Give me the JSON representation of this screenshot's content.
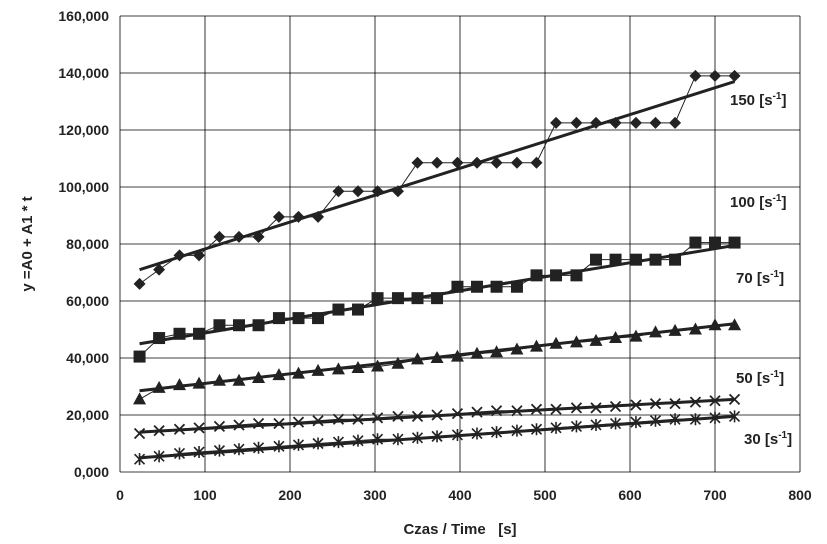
{
  "chart_data": {
    "type": "scatter",
    "xlabel": "Czas / Time   [s]",
    "ylabel": "y =A0 + A1 * t",
    "xlim": [
      0,
      800
    ],
    "ylim": [
      0,
      160000
    ],
    "x_ticks": [
      "0",
      "100",
      "200",
      "300",
      "400",
      "500",
      "600",
      "700",
      "800"
    ],
    "y_ticks": [
      "0,000",
      "20,000",
      "40,000",
      "60,000",
      "80,000",
      "100,000",
      "120,000",
      "140,000",
      "160,000"
    ],
    "grid": true,
    "series": [
      {
        "label_base": "150 [s",
        "label_sup": "-1",
        "label_end": "]",
        "marker": "diamond",
        "x": [
          23,
          46,
          70,
          93,
          117,
          140,
          163,
          187,
          210,
          233,
          257,
          280,
          303,
          327,
          350,
          373,
          397,
          420,
          443,
          467,
          490,
          513,
          537,
          560,
          583,
          607,
          630,
          653,
          677,
          700,
          723
        ],
        "values": [
          66000,
          71000,
          76000,
          76000,
          82500,
          82500,
          82500,
          89500,
          89500,
          89500,
          98500,
          98500,
          98500,
          98500,
          108500,
          108500,
          108500,
          108500,
          108500,
          108500,
          108500,
          122500,
          122500,
          122500,
          122500,
          122500,
          122500,
          122500,
          139000,
          139000,
          139000
        ],
        "fit": {
          "x": [
            23,
            723
          ],
          "y": [
            71000,
            137000
          ]
        }
      },
      {
        "label_base": "100 [s",
        "label_sup": "-1",
        "label_end": "]",
        "marker": "square",
        "x": [
          23,
          46,
          70,
          93,
          117,
          140,
          163,
          187,
          210,
          233,
          257,
          280,
          303,
          327,
          350,
          373,
          397,
          420,
          443,
          467,
          490,
          513,
          537,
          560,
          583,
          607,
          630,
          653,
          677,
          700,
          723
        ],
        "values": [
          40500,
          47000,
          48500,
          48500,
          51500,
          51500,
          51500,
          54000,
          54000,
          54000,
          57000,
          57000,
          61000,
          61000,
          61000,
          61000,
          65000,
          65000,
          65000,
          65000,
          69000,
          69000,
          69000,
          74500,
          74500,
          74500,
          74500,
          74500,
          80500,
          80500,
          80500
        ],
        "fit": {
          "x": [
            23,
            723
          ],
          "y": [
            45000,
            79500
          ]
        }
      },
      {
        "label_base": "70 [s",
        "label_sup": "-1",
        "label_end": "]",
        "marker": "triangle",
        "x": [
          23,
          46,
          70,
          93,
          117,
          140,
          163,
          187,
          210,
          233,
          257,
          280,
          303,
          327,
          350,
          373,
          397,
          420,
          443,
          467,
          490,
          513,
          537,
          560,
          583,
          607,
          630,
          653,
          677,
          700,
          723
        ],
        "values": [
          25500,
          29500,
          30500,
          31000,
          32000,
          32000,
          33000,
          34000,
          34500,
          35500,
          36000,
          36500,
          37000,
          38000,
          39500,
          40000,
          40500,
          41500,
          42000,
          43000,
          44000,
          45000,
          45500,
          46000,
          47000,
          47500,
          49000,
          49500,
          50000,
          51500,
          51500
        ],
        "fit": {
          "x": [
            23,
            723
          ],
          "y": [
            28500,
            52000
          ]
        }
      },
      {
        "label_base": "50 [s",
        "label_sup": "-1",
        "label_end": "]",
        "marker": "x",
        "x": [
          23,
          46,
          70,
          93,
          117,
          140,
          163,
          187,
          210,
          233,
          257,
          280,
          303,
          327,
          350,
          373,
          397,
          420,
          443,
          467,
          490,
          513,
          537,
          560,
          583,
          607,
          630,
          653,
          677,
          700,
          723
        ],
        "values": [
          13500,
          14500,
          15000,
          15500,
          16000,
          16500,
          17000,
          17000,
          17500,
          18000,
          18500,
          18500,
          19000,
          19500,
          19500,
          20000,
          20500,
          21000,
          21500,
          21500,
          22000,
          22000,
          22500,
          22500,
          23000,
          23500,
          24000,
          24000,
          24500,
          25000,
          25500
        ],
        "fit": {
          "x": [
            23,
            723
          ],
          "y": [
            14000,
            25500
          ]
        }
      },
      {
        "label_base": "30 [s",
        "label_sup": "-1",
        "label_end": "]",
        "marker": "asterisk",
        "x": [
          23,
          46,
          70,
          93,
          117,
          140,
          163,
          187,
          210,
          233,
          257,
          280,
          303,
          327,
          350,
          373,
          397,
          420,
          443,
          467,
          490,
          513,
          537,
          560,
          583,
          607,
          630,
          653,
          677,
          700,
          723
        ],
        "values": [
          4500,
          5500,
          6500,
          7000,
          7500,
          8000,
          8500,
          9000,
          9500,
          10000,
          10500,
          11000,
          11500,
          11500,
          12000,
          12500,
          13000,
          13500,
          14000,
          14500,
          15000,
          15500,
          16000,
          16500,
          17000,
          17500,
          18000,
          18500,
          18500,
          19000,
          19500
        ],
        "fit": {
          "x": [
            23,
            723
          ],
          "y": [
            5000,
            19500
          ]
        }
      }
    ]
  }
}
